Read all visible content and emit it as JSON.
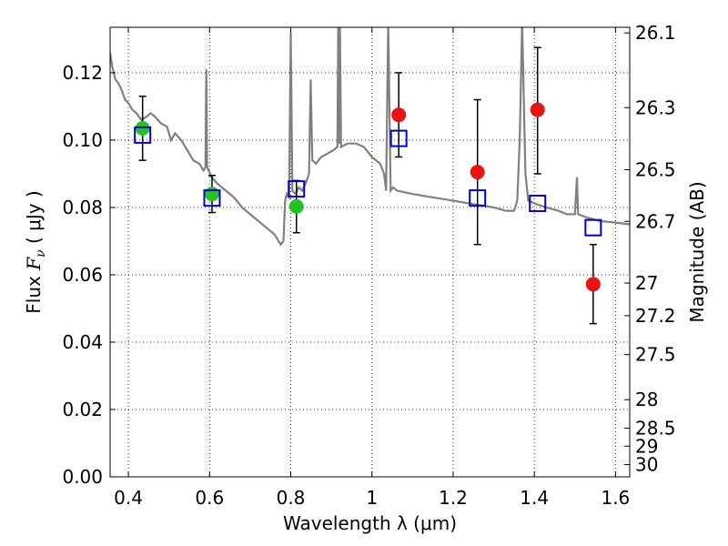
{
  "chart_data": {
    "type": "scatter",
    "xlabel": "Wavelength  λ (μm)",
    "ylabel": "Flux  Fν ( μJy )",
    "ylabel_parts": {
      "prefix": "Flux  ",
      "symbol": "F",
      "subscript": "ν",
      "suffix": " ( μJy )"
    },
    "y2label": "Magnitude (AB)",
    "xlim": [
      0.355,
      1.635
    ],
    "ylim": [
      0.0,
      0.1335
    ],
    "x_ticks": [
      0.4,
      0.6,
      0.8,
      1.0,
      1.2,
      1.4,
      1.6
    ],
    "x_tick_labels": [
      "0.4",
      "0.6",
      "0.8",
      "1",
      "1.2",
      "1.4",
      "1.6"
    ],
    "y_ticks": [
      0.0,
      0.02,
      0.04,
      0.06,
      0.08,
      0.1,
      0.12
    ],
    "y_tick_labels": [
      "0.00",
      "0.02",
      "0.04",
      "0.06",
      "0.08",
      "0.10",
      "0.12"
    ],
    "y2_ticks": [
      26.1,
      26.3,
      26.5,
      26.7,
      27,
      27.2,
      27.5,
      28,
      28.5,
      29,
      30
    ],
    "y2_tick_labels": [
      "26.1",
      "26.3",
      "26.5",
      "26.7",
      "27",
      "27.2",
      "27.5",
      "28",
      "28.5",
      "29",
      "30"
    ],
    "grid": true,
    "colors": {
      "model": "#808080",
      "green": "#22c322",
      "red": "#ee1111",
      "blue": "#0000cc",
      "errorbar": "#000000"
    },
    "series": [
      {
        "marker": "circle",
        "color": "green",
        "points": [
          {
            "x": 0.435,
            "y": 0.1035
          },
          {
            "x": 0.606,
            "y": 0.084
          },
          {
            "x": 0.814,
            "y": 0.0803
          }
        ]
      },
      {
        "marker": "circle",
        "color": "red",
        "points": [
          {
            "x": 1.066,
            "y": 0.1075
          },
          {
            "x": 1.26,
            "y": 0.0905
          },
          {
            "x": 1.408,
            "y": 0.109
          },
          {
            "x": 1.545,
            "y": 0.0572
          }
        ]
      },
      {
        "marker": "square-open",
        "color": "blue",
        "points": [
          {
            "x": 0.435,
            "y": 0.1015
          },
          {
            "x": 0.606,
            "y": 0.0828
          },
          {
            "x": 0.814,
            "y": 0.0855
          },
          {
            "x": 1.066,
            "y": 0.1005
          },
          {
            "x": 1.26,
            "y": 0.0828
          },
          {
            "x": 1.408,
            "y": 0.0812
          },
          {
            "x": 1.545,
            "y": 0.074
          }
        ]
      }
    ],
    "errorbars": [
      {
        "x": 0.435,
        "low": 0.094,
        "high": 0.113
      },
      {
        "x": 0.606,
        "low": 0.0785,
        "high": 0.0895
      },
      {
        "x": 0.814,
        "low": 0.0725,
        "high": 0.088
      },
      {
        "x": 1.066,
        "low": 0.095,
        "high": 0.12
      },
      {
        "x": 1.26,
        "low": 0.069,
        "high": 0.112
      },
      {
        "x": 1.408,
        "low": 0.09,
        "high": 0.1275
      },
      {
        "x": 1.545,
        "low": 0.0455,
        "high": 0.069
      }
    ],
    "model_spectrum": [
      [
        0.355,
        0.126
      ],
      [
        0.36,
        0.122
      ],
      [
        0.368,
        0.118
      ],
      [
        0.375,
        0.117
      ],
      [
        0.383,
        0.115
      ],
      [
        0.392,
        0.112
      ],
      [
        0.4,
        0.111
      ],
      [
        0.41,
        0.109
      ],
      [
        0.42,
        0.108
      ],
      [
        0.432,
        0.106
      ],
      [
        0.445,
        0.107
      ],
      [
        0.455,
        0.108
      ],
      [
        0.465,
        0.107
      ],
      [
        0.48,
        0.105
      ],
      [
        0.495,
        0.104
      ],
      [
        0.505,
        0.1
      ],
      [
        0.515,
        0.102
      ],
      [
        0.53,
        0.1
      ],
      [
        0.545,
        0.097
      ],
      [
        0.56,
        0.094
      ],
      [
        0.575,
        0.093
      ],
      [
        0.585,
        0.091
      ],
      [
        0.59,
        0.092
      ],
      [
        0.592,
        0.121
      ],
      [
        0.594,
        0.092
      ],
      [
        0.605,
        0.089
      ],
      [
        0.62,
        0.087
      ],
      [
        0.64,
        0.085
      ],
      [
        0.66,
        0.083
      ],
      [
        0.68,
        0.08
      ],
      [
        0.7,
        0.078
      ],
      [
        0.72,
        0.076
      ],
      [
        0.74,
        0.074
      ],
      [
        0.76,
        0.072
      ],
      [
        0.775,
        0.069
      ],
      [
        0.782,
        0.07
      ],
      [
        0.786,
        0.082
      ],
      [
        0.79,
        0.084
      ],
      [
        0.796,
        0.083
      ],
      [
        0.8,
        0.132
      ],
      [
        0.804,
        0.085
      ],
      [
        0.812,
        0.084
      ],
      [
        0.82,
        0.086
      ],
      [
        0.828,
        0.085
      ],
      [
        0.836,
        0.087
      ],
      [
        0.845,
        0.09
      ],
      [
        0.849,
        0.118
      ],
      [
        0.853,
        0.094
      ],
      [
        0.862,
        0.093
      ],
      [
        0.875,
        0.095
      ],
      [
        0.89,
        0.096
      ],
      [
        0.905,
        0.097
      ],
      [
        0.915,
        0.098
      ],
      [
        0.917,
        0.135
      ],
      [
        0.919,
        0.099
      ],
      [
        0.921,
        0.135
      ],
      [
        0.924,
        0.098
      ],
      [
        0.94,
        0.099
      ],
      [
        0.96,
        0.099
      ],
      [
        0.98,
        0.098
      ],
      [
        1.0,
        0.095
      ],
      [
        1.01,
        0.094
      ],
      [
        1.02,
        0.093
      ],
      [
        1.03,
        0.09
      ],
      [
        1.035,
        0.085
      ],
      [
        1.04,
        0.135
      ],
      [
        1.046,
        0.085
      ],
      [
        1.052,
        0.086
      ],
      [
        1.062,
        0.085
      ],
      [
        1.1,
        0.084
      ],
      [
        1.15,
        0.083
      ],
      [
        1.2,
        0.082
      ],
      [
        1.25,
        0.081
      ],
      [
        1.3,
        0.08
      ],
      [
        1.33,
        0.079
      ],
      [
        1.35,
        0.079
      ],
      [
        1.358,
        0.082
      ],
      [
        1.364,
        0.1
      ],
      [
        1.37,
        0.135
      ],
      [
        1.378,
        0.09
      ],
      [
        1.385,
        0.082
      ],
      [
        1.405,
        0.081
      ],
      [
        1.43,
        0.08
      ],
      [
        1.46,
        0.079
      ],
      [
        1.48,
        0.078
      ],
      [
        1.5,
        0.078
      ],
      [
        1.505,
        0.089
      ],
      [
        1.508,
        0.078
      ],
      [
        1.53,
        0.077
      ],
      [
        1.56,
        0.076
      ],
      [
        1.6,
        0.0755
      ],
      [
        1.635,
        0.075
      ]
    ]
  }
}
